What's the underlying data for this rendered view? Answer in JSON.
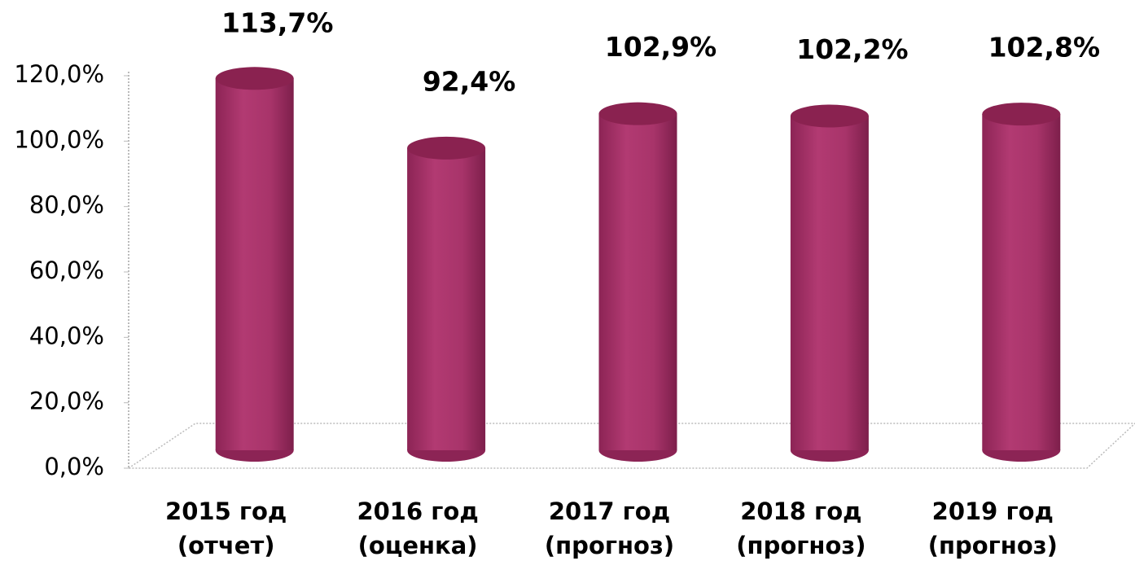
{
  "chart_data": {
    "type": "bar3d",
    "categories": [
      [
        "2015 год",
        "(отчет)"
      ],
      [
        "2016 год",
        "(оценка)"
      ],
      [
        "2017 год",
        "(прогноз)"
      ],
      [
        "2018 год",
        "(прогноз)"
      ],
      [
        "2019 год",
        "(прогноз)"
      ]
    ],
    "values": [
      113.7,
      92.4,
      102.9,
      102.2,
      102.8
    ],
    "value_labels": [
      "113,7%",
      "92,4%",
      "102,9%",
      "102,2%",
      "102,8%"
    ],
    "color": "#a8346a",
    "ylim": [
      0,
      120
    ],
    "yticks": [
      {
        "value": 0,
        "label": "0,0%"
      },
      {
        "value": 20,
        "label": "20,0%"
      },
      {
        "value": 40,
        "label": "40,0%"
      },
      {
        "value": 60,
        "label": "60,0%"
      },
      {
        "value": 80,
        "label": "80,0%"
      },
      {
        "value": 100,
        "label": "100,0%"
      },
      {
        "value": 120,
        "label": "120,0%"
      }
    ],
    "grid": false
  }
}
